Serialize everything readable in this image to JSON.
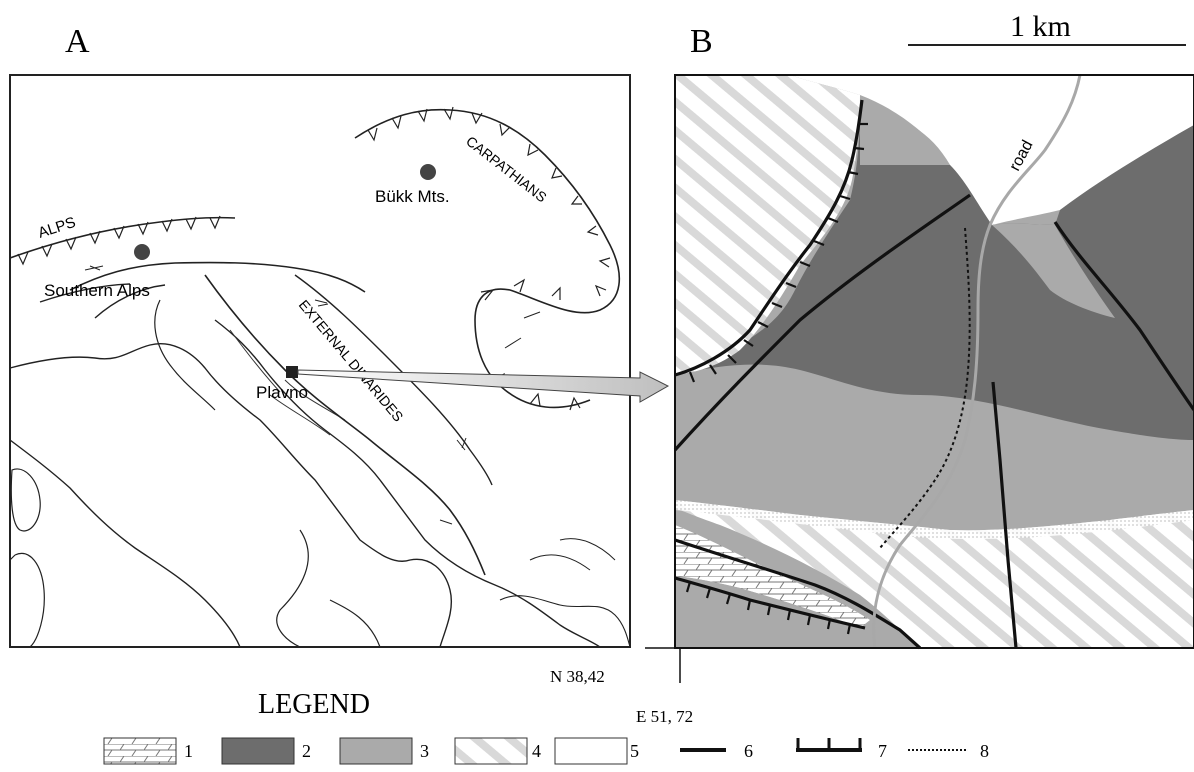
{
  "panel_a": {
    "label": "A",
    "labels": {
      "alps": "ALPS",
      "southern_alps": "Southern Alps",
      "bukk": "Bükk Mts.",
      "carpathians": "CARPATHIANS",
      "external_dinarides": "EXTERNAL DINARIDES",
      "plavno": "Plavno"
    }
  },
  "panel_b": {
    "label": "B",
    "scale_label": "1 km",
    "road_label": "road",
    "coord_n": "N 38,42",
    "coord_e": "E 51, 72"
  },
  "legend": {
    "title": "LEGEND",
    "items": [
      {
        "num": "1",
        "pattern": "limestone-brick"
      },
      {
        "num": "2",
        "color": "#6d6d6d"
      },
      {
        "num": "3",
        "color": "#aaaaaa"
      },
      {
        "num": "4",
        "pattern": "diagonal-hatch"
      },
      {
        "num": "5",
        "color": "#ffffff"
      },
      {
        "num": "6",
        "pattern": "solid-line"
      },
      {
        "num": "7",
        "pattern": "thrust-line"
      },
      {
        "num": "8",
        "pattern": "dotted-line"
      }
    ]
  }
}
